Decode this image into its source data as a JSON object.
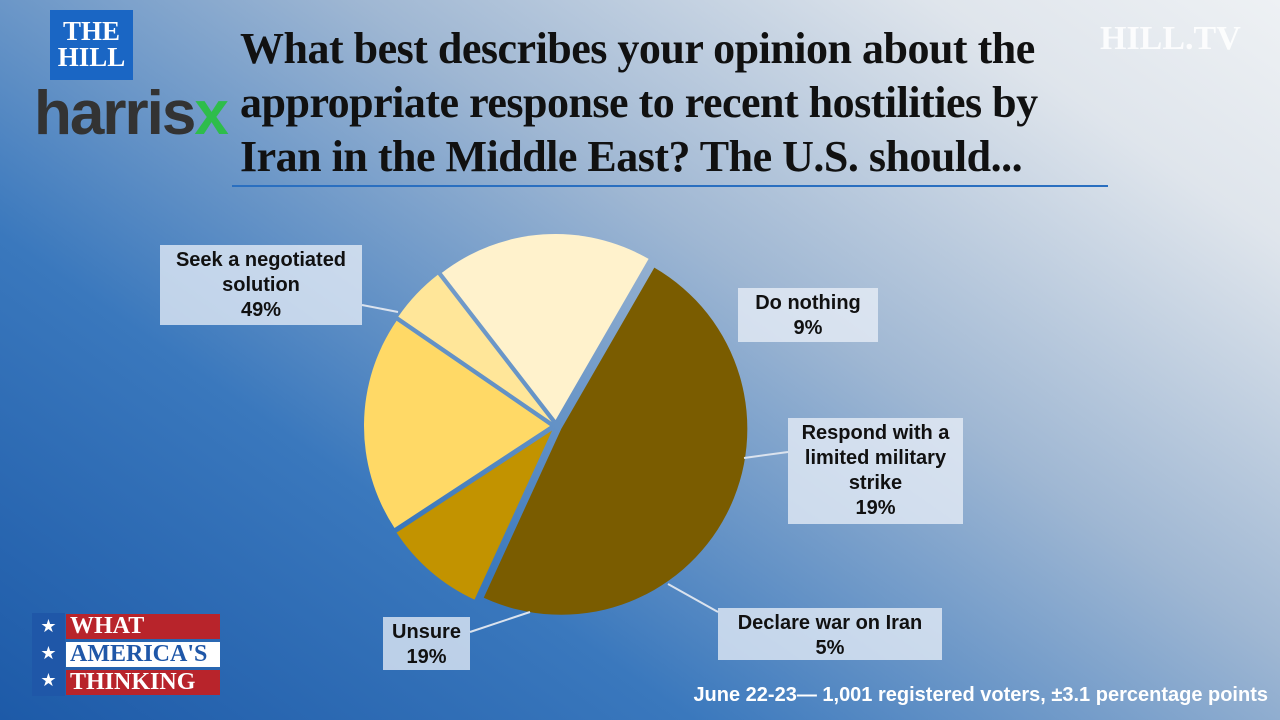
{
  "chart_data": {
    "type": "pie",
    "title": "What best describes your opinion about the appropriate response to recent hostilities by Iran in the Middle East? The U.S. should...",
    "categories": [
      "Seek a negotiated solution",
      "Do nothing",
      "Respond with a limited military strike",
      "Declare war on Iran",
      "Unsure"
    ],
    "values": [
      49,
      9,
      19,
      5,
      19
    ],
    "value_labels": [
      "49%",
      "9%",
      "19%",
      "5%",
      "19%"
    ],
    "colors": [
      "#7a5c00",
      "#c29300",
      "#ffd966",
      "#ffe699",
      "#fff2cc"
    ],
    "note": "June 22-23— 1,001 registered voters, ±3.1 percentage points"
  },
  "logos": {
    "the": "THE",
    "hill": "HILL",
    "harris": "harris",
    "x": "x",
    "hill_tv": "HILL.TV",
    "what": "WHAT",
    "americas": "AMERICA'S",
    "thinking": "THINKING"
  }
}
